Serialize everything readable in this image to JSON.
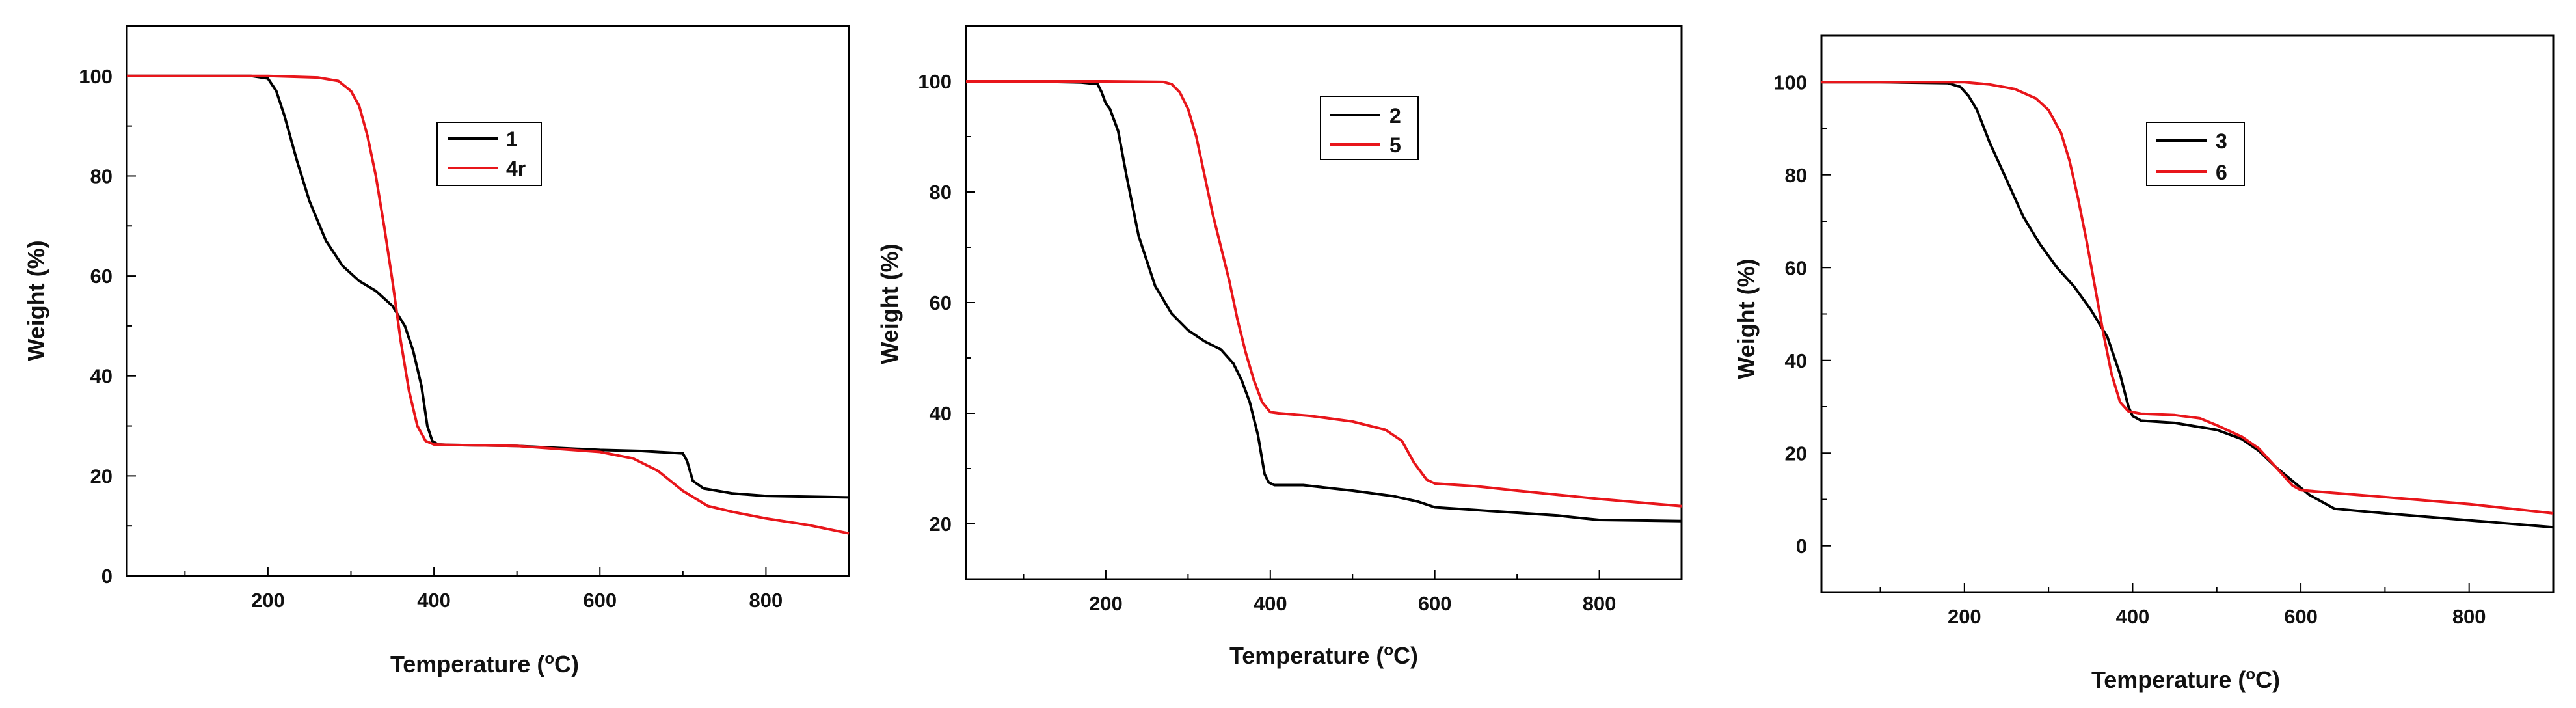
{
  "colors": {
    "series_a": "#000000",
    "series_b": "#e8161b",
    "axis": "#000000",
    "background": "#ffffff"
  },
  "chart_data": [
    {
      "type": "line",
      "title": "",
      "xlabel": "Temperature (",
      "xlabel_sup": "o",
      "xlabel_tail": "C)",
      "ylabel": "Weight (%)",
      "xlim": [
        30,
        900
      ],
      "ylim": [
        0,
        110
      ],
      "xticks": [
        200,
        400,
        600,
        800
      ],
      "yticks": [
        0,
        20,
        40,
        60,
        80,
        100
      ],
      "legend_position": "top-center",
      "series": [
        {
          "name": "1",
          "color": "#000000",
          "x": [
            30,
            100,
            180,
            200,
            210,
            220,
            235,
            250,
            270,
            290,
            310,
            330,
            350,
            365,
            375,
            385,
            392,
            398,
            405,
            420,
            500,
            600,
            650,
            700,
            705,
            712,
            725,
            760,
            800,
            900
          ],
          "y": [
            100,
            100,
            100,
            99.5,
            97,
            92,
            83,
            75,
            67,
            62,
            59,
            57,
            54,
            50,
            45,
            38,
            30,
            27,
            26.3,
            26.2,
            26,
            25.2,
            25,
            24.5,
            23,
            19,
            17.5,
            16.5,
            16,
            15.7
          ]
        },
        {
          "name": "4r",
          "color": "#e8161b",
          "x": [
            30,
            100,
            200,
            260,
            285,
            300,
            310,
            320,
            330,
            340,
            350,
            360,
            370,
            380,
            390,
            400,
            420,
            500,
            600,
            640,
            670,
            700,
            730,
            760,
            800,
            850,
            900
          ],
          "y": [
            100,
            100,
            100,
            99.7,
            99,
            97,
            94,
            88,
            80,
            70,
            59,
            47,
            37,
            30,
            27,
            26.3,
            26.2,
            26,
            24.8,
            23.5,
            21,
            17,
            14,
            12.8,
            11.5,
            10.2,
            8.5
          ]
        }
      ]
    },
    {
      "type": "line",
      "title": "",
      "xlabel": "Temperature (",
      "xlabel_sup": "o",
      "xlabel_tail": "C)",
      "ylabel": "Weight (%)",
      "xlim": [
        30,
        900
      ],
      "ylim": [
        10,
        110
      ],
      "xticks": [
        200,
        400,
        600,
        800
      ],
      "yticks": [
        20,
        40,
        60,
        80,
        100
      ],
      "legend_position": "top-center",
      "series": [
        {
          "name": "2",
          "color": "#000000",
          "x": [
            30,
            100,
            170,
            190,
            195,
            200,
            205,
            215,
            225,
            240,
            260,
            280,
            300,
            320,
            340,
            355,
            365,
            375,
            385,
            393,
            398,
            405,
            440,
            500,
            550,
            580,
            600,
            650,
            700,
            750,
            780,
            800,
            900
          ],
          "y": [
            100,
            100,
            99.8,
            99.5,
            98,
            96,
            95,
            91,
            83,
            72,
            63,
            58,
            55,
            53,
            51.5,
            49,
            46,
            42,
            36,
            29,
            27.5,
            27,
            27,
            26,
            25,
            24,
            23,
            22.5,
            22,
            21.5,
            21,
            20.7,
            20.5
          ]
        },
        {
          "name": "5",
          "color": "#e8161b",
          "x": [
            30,
            100,
            200,
            270,
            280,
            290,
            300,
            310,
            320,
            330,
            340,
            350,
            360,
            370,
            380,
            390,
            400,
            410,
            450,
            500,
            540,
            560,
            575,
            590,
            600,
            650,
            700,
            800,
            900
          ],
          "y": [
            100,
            100,
            100,
            99.9,
            99.5,
            98,
            95,
            90,
            83,
            76,
            70,
            64,
            57,
            51,
            46,
            42,
            40.2,
            40,
            39.5,
            38.5,
            37,
            35,
            31,
            28,
            27.3,
            26.8,
            26,
            24.5,
            23.2
          ]
        }
      ]
    },
    {
      "type": "line",
      "title": "",
      "xlabel": "Temperature (",
      "xlabel_sup": "o",
      "xlabel_tail": "C)",
      "ylabel": "Weight (%)",
      "xlim": [
        30,
        900
      ],
      "ylim": [
        -10,
        110
      ],
      "xticks": [
        200,
        400,
        600,
        800
      ],
      "yticks": [
        0,
        20,
        40,
        60,
        80,
        100
      ],
      "legend_position": "top-center",
      "series": [
        {
          "name": "3",
          "color": "#000000",
          "x": [
            30,
            100,
            180,
            195,
            205,
            215,
            230,
            250,
            270,
            290,
            310,
            330,
            350,
            370,
            385,
            395,
            400,
            410,
            450,
            500,
            530,
            550,
            570,
            590,
            610,
            640,
            700,
            800,
            900
          ],
          "y": [
            100,
            100,
            99.8,
            99,
            97,
            94,
            87,
            79,
            71,
            65,
            60,
            56,
            51,
            45,
            37,
            30,
            28,
            27,
            26.5,
            25,
            23,
            20.5,
            17,
            14,
            11,
            8,
            7,
            5.5,
            4
          ]
        },
        {
          "name": "6",
          "color": "#e8161b",
          "x": [
            30,
            100,
            200,
            230,
            260,
            285,
            300,
            315,
            325,
            335,
            345,
            355,
            365,
            375,
            385,
            395,
            410,
            450,
            480,
            500,
            530,
            550,
            570,
            590,
            600,
            700,
            800,
            900
          ],
          "y": [
            100,
            100,
            100,
            99.5,
            98.5,
            96.5,
            94,
            89,
            83,
            75,
            66,
            56,
            46,
            37,
            31,
            29,
            28.5,
            28.2,
            27.5,
            26,
            23.5,
            21,
            17,
            13,
            12,
            10.5,
            9,
            7
          ]
        }
      ]
    }
  ]
}
